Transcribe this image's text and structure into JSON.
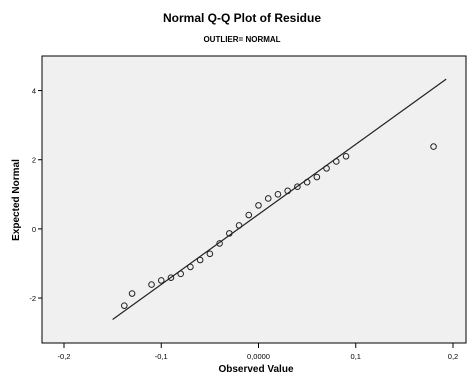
{
  "chart_data": {
    "type": "scatter",
    "title": "Normal Q-Q Plot of Residue",
    "subtitle": "OUTLIER= NORMAL",
    "xlabel": "Observed Value",
    "ylabel": "Expected Normal",
    "xlim": [
      -0.2,
      0.2
    ],
    "ylim": [
      -3.3,
      5.0
    ],
    "x_ticks": [
      -0.2,
      -0.1,
      0.0,
      0.1,
      0.2
    ],
    "x_tick_labels": [
      "-0,2",
      "-0,1",
      "0,0000",
      "0,1",
      "0,2"
    ],
    "y_ticks": [
      -2,
      0,
      2,
      4
    ],
    "y_tick_labels": [
      "-2",
      "0",
      "2",
      "4"
    ],
    "grid": false,
    "reference_line": {
      "x": [
        -0.15,
        0.193
      ],
      "y": [
        -2.62,
        4.33
      ]
    },
    "points": {
      "x": [
        -0.138,
        -0.13,
        -0.11,
        -0.1,
        -0.09,
        -0.08,
        -0.07,
        -0.06,
        -0.05,
        -0.04,
        -0.03,
        -0.02,
        -0.01,
        0.0,
        0.01,
        0.02,
        0.03,
        0.04,
        0.05,
        0.06,
        0.07,
        0.08,
        0.09,
        0.18
      ],
      "y": [
        -2.22,
        -1.87,
        -1.61,
        -1.49,
        -1.41,
        -1.3,
        -1.1,
        -0.9,
        -0.72,
        -0.42,
        -0.13,
        0.1,
        0.4,
        0.68,
        0.88,
        1.0,
        1.1,
        1.22,
        1.35,
        1.5,
        1.75,
        1.95,
        2.1,
        2.38
      ]
    }
  }
}
